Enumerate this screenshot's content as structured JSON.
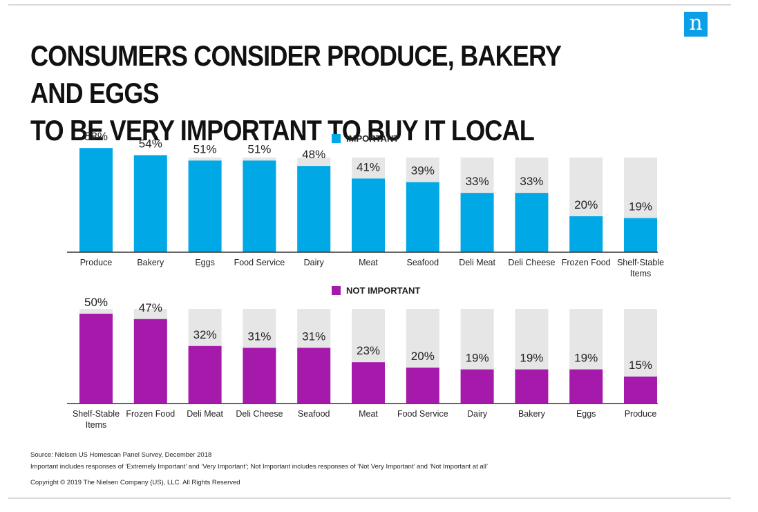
{
  "logo": {
    "letter": "n",
    "color": "#0c9ee6"
  },
  "title_lines": [
    "CONSUMERS CONSIDER PRODUCE, BAKERY AND EGGS",
    "TO BE VERY IMPORTANT TO BUY IT LOCAL"
  ],
  "colors": {
    "important": "#00a9e6",
    "not_important": "#a61aab",
    "track": "#e6e6e6",
    "axis": "#333333"
  },
  "chart_data": [
    {
      "type": "bar",
      "series": [
        {
          "name": "IMPORTANT",
          "values": [
            58,
            54,
            51,
            51,
            48,
            41,
            39,
            33,
            33,
            20,
            19
          ]
        }
      ],
      "categories": [
        "Produce",
        "Bakery",
        "Eggs",
        "Food Service",
        "Dairy",
        "Meat",
        "Seafood",
        "Deli Meat",
        "Deli Cheese",
        "Frozen Food",
        "Shelf-Stable Items"
      ],
      "data_labels": [
        "58%",
        "54%",
        "51%",
        "51%",
        "48%",
        "41%",
        "39%",
        "33%",
        "33%",
        "20%",
        "19%"
      ],
      "ylim": [
        0,
        100
      ],
      "legend": "top-center",
      "grid": false
    },
    {
      "type": "bar",
      "series": [
        {
          "name": "NOT IMPORTANT",
          "values": [
            50,
            47,
            32,
            31,
            31,
            23,
            20,
            19,
            19,
            19,
            15
          ]
        }
      ],
      "categories": [
        "Shelf-Stable Items",
        "Frozen Food",
        "Deli Meat",
        "Deli Cheese",
        "Seafood",
        "Meat",
        "Food Service",
        "Dairy",
        "Bakery",
        "Eggs",
        "Produce"
      ],
      "data_labels": [
        "50%",
        "47%",
        "32%",
        "31%",
        "31%",
        "23%",
        "20%",
        "19%",
        "19%",
        "19%",
        "15%"
      ],
      "ylim": [
        0,
        100
      ],
      "legend": "top-center",
      "grid": false
    }
  ],
  "footer": {
    "source": "Source: Nielsen US Homescan Panel Survey, December 2018",
    "note": "Important includes responses of ‘Extremely Important’ and ‘Very Important’; Not Important includes responses of ‘Not Very Important’ and ‘Not Important at all’",
    "copyright": "Copyright © 2019 The Nielsen Company (US), LLC. All Rights Reserved"
  }
}
